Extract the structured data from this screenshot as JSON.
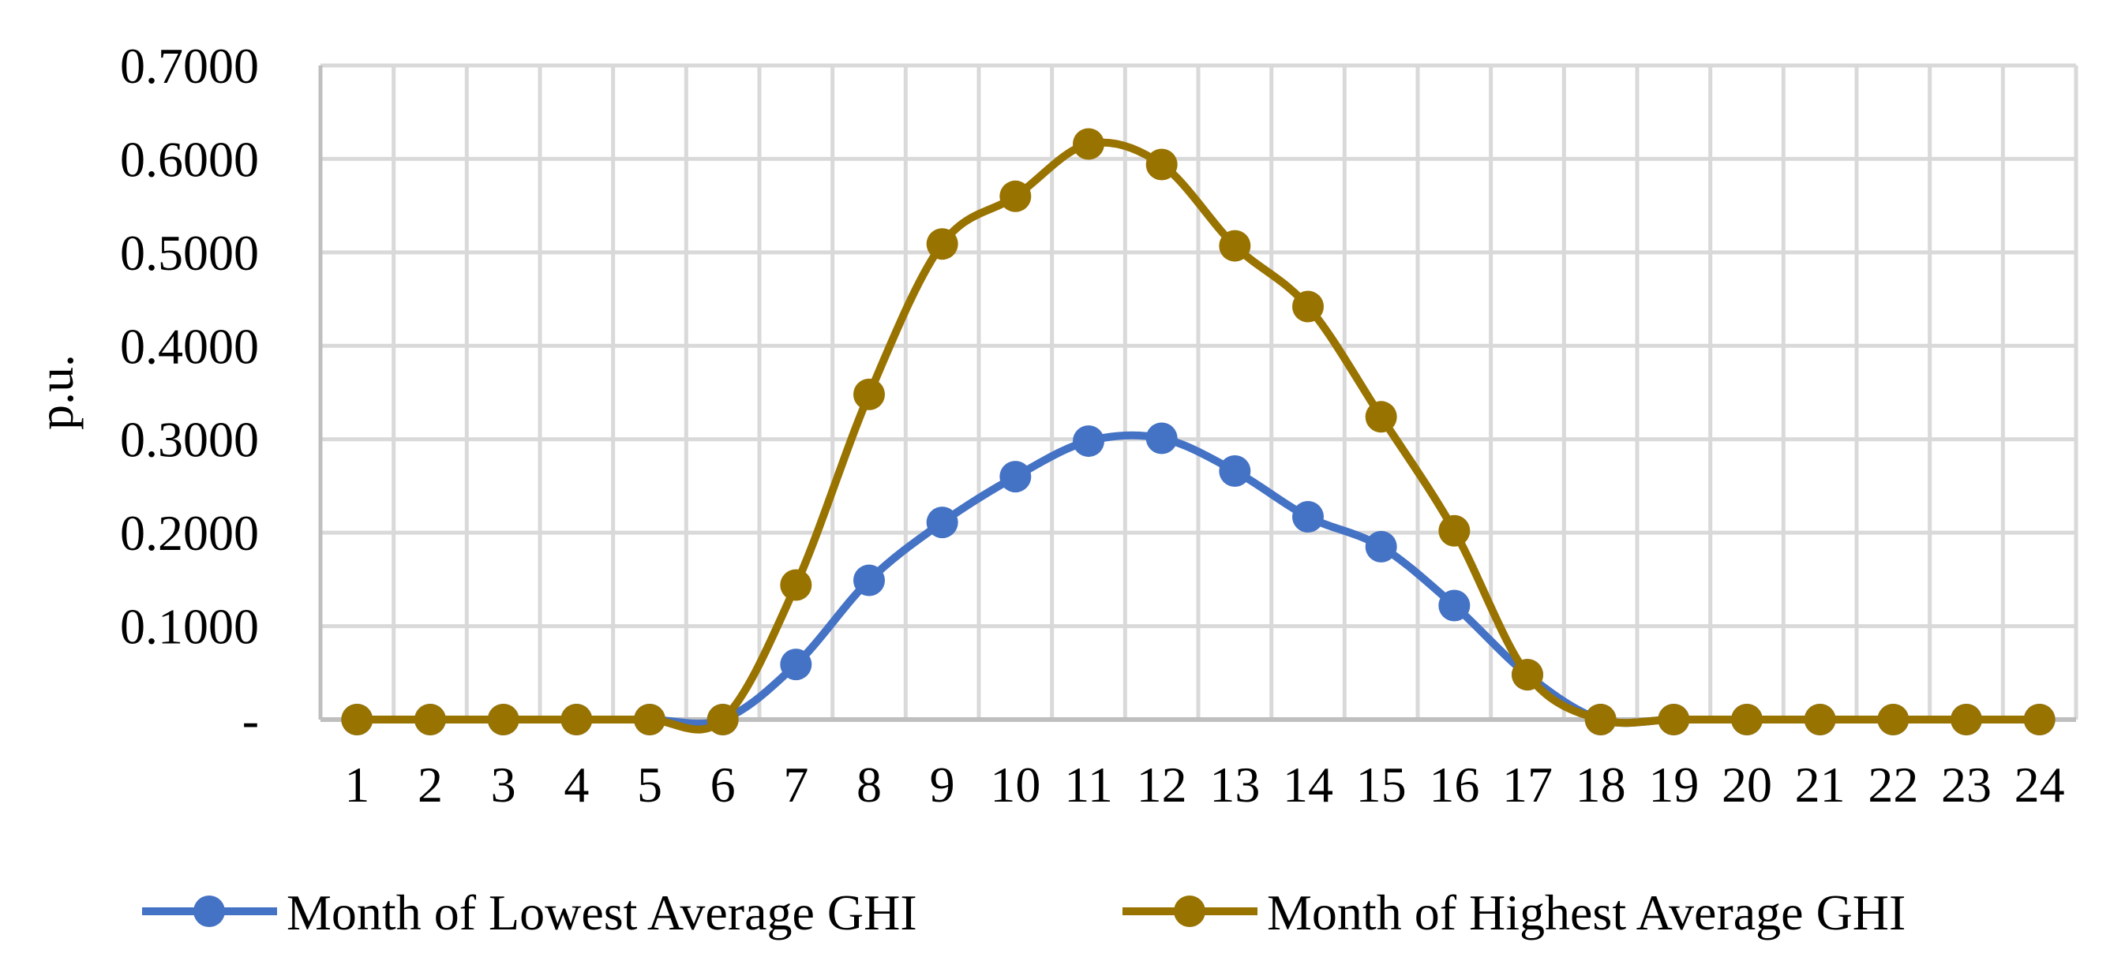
{
  "chart_data": {
    "type": "line",
    "title": "",
    "xlabel": "",
    "ylabel": "p.u.",
    "x": [
      1,
      2,
      3,
      4,
      5,
      6,
      7,
      8,
      9,
      10,
      11,
      12,
      13,
      14,
      15,
      16,
      17,
      18,
      19,
      20,
      21,
      22,
      23,
      24
    ],
    "ylim": [
      0,
      0.7
    ],
    "yticks": [
      0,
      0.1,
      0.2,
      0.3,
      0.4,
      0.5,
      0.6,
      0.7
    ],
    "ytick_labels": [
      "-",
      "0.1000",
      "0.2000",
      "0.3000",
      "0.4000",
      "0.5000",
      "0.6000",
      "0.7000"
    ],
    "grid": true,
    "smooth": true,
    "legend_position": "bottom",
    "series": [
      {
        "name": "Month of Lowest Average GHI",
        "color": "#4472C4",
        "values": [
          0,
          0,
          0,
          0,
          0,
          0,
          0.059,
          0.149,
          0.211,
          0.26,
          0.298,
          0.301,
          0.266,
          0.217,
          0.185,
          0.122,
          0.048,
          0,
          0,
          0,
          0,
          0,
          0,
          0
        ]
      },
      {
        "name": "Month of Highest Average GHI",
        "color": "#997300",
        "values": [
          0,
          0,
          0,
          0,
          0,
          0,
          0.144,
          0.348,
          0.509,
          0.56,
          0.616,
          0.594,
          0.507,
          0.442,
          0.324,
          0.202,
          0.048,
          0,
          0,
          0,
          0,
          0,
          0,
          0
        ]
      }
    ]
  }
}
